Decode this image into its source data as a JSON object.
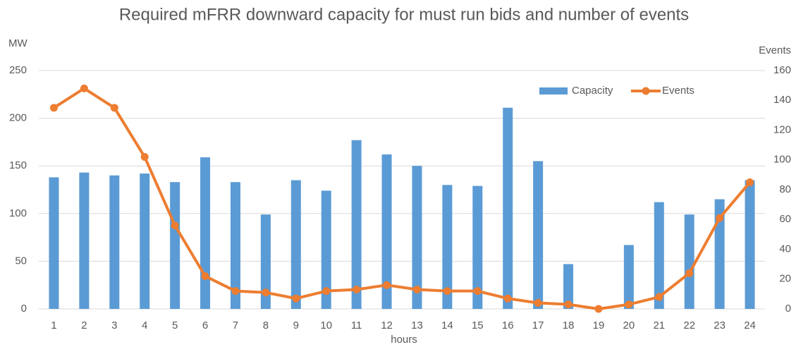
{
  "chart_data": {
    "type": "bar_line",
    "title": "Required mFRR downward capacity for must run bids and number of events",
    "x_label": "hours",
    "y_label": "MW",
    "y2_label": "Events",
    "categories": [
      "1",
      "2",
      "3",
      "4",
      "5",
      "6",
      "7",
      "8",
      "9",
      "10",
      "11",
      "12",
      "13",
      "14",
      "15",
      "16",
      "17",
      "18",
      "19",
      "20",
      "21",
      "22",
      "23",
      "24"
    ],
    "series": [
      {
        "name": "Capacity",
        "type": "bar",
        "color": "#5b9bd5",
        "values": [
          138,
          143,
          140,
          142,
          133,
          159,
          133,
          99,
          135,
          124,
          177,
          162,
          150,
          130,
          129,
          211,
          155,
          47,
          0,
          67,
          112,
          99,
          115,
          135
        ]
      },
      {
        "name": "Events",
        "type": "line",
        "axis": "y2",
        "color": "#ed7d31",
        "values": [
          135,
          148,
          135,
          102,
          56,
          22,
          12,
          11,
          7,
          12,
          13,
          16,
          13,
          12,
          12,
          7,
          4,
          3,
          0,
          3,
          8,
          24,
          61,
          85
        ]
      }
    ],
    "ylim": [
      0,
      250
    ],
    "yticks": [
      0,
      50,
      100,
      150,
      200,
      250
    ],
    "y2lim": [
      0,
      160
    ],
    "y2ticks": [
      0,
      20,
      40,
      60,
      80,
      100,
      120,
      140,
      160
    ],
    "grid": true,
    "legend": "top-right"
  }
}
